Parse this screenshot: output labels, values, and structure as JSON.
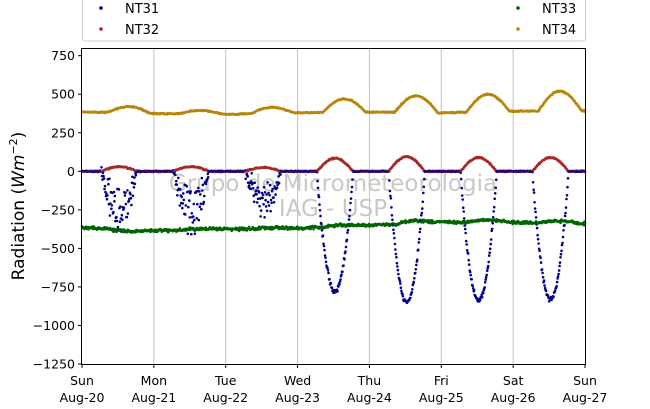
{
  "chart_data": {
    "type": "scatter",
    "title": "",
    "xlabel": "",
    "ylabel_text": "Radiation (",
    "ylabel_unit": "Wm",
    "ylabel_exp": "−2",
    "ylabel_close": ")",
    "watermark": [
      "Grupo de Micrometeorologia",
      "IAG - USP"
    ],
    "xlim": [
      0,
      7
    ],
    "ylim": [
      -1250,
      800
    ],
    "grid": "vertical",
    "legend_placement": "top",
    "x_ticks": [
      {
        "x": 0,
        "day": "Sun",
        "date": "Aug-20"
      },
      {
        "x": 1,
        "day": "Mon",
        "date": "Aug-21"
      },
      {
        "x": 2,
        "day": "Tue",
        "date": "Aug-22"
      },
      {
        "x": 3,
        "day": "Wed",
        "date": "Aug-23"
      },
      {
        "x": 4,
        "day": "Thu",
        "date": "Aug-24"
      },
      {
        "x": 5,
        "day": "Fri",
        "date": "Aug-25"
      },
      {
        "x": 6,
        "day": "Sat",
        "date": "Aug-26"
      },
      {
        "x": 7,
        "day": "Sun",
        "date": "Aug-27"
      }
    ],
    "y_ticks": [
      {
        "v": 750,
        "label": "750"
      },
      {
        "v": 500,
        "label": "500"
      },
      {
        "v": 250,
        "label": "250"
      },
      {
        "v": 0,
        "label": "0"
      },
      {
        "v": -250,
        "label": "−250"
      },
      {
        "v": -500,
        "label": "−500"
      },
      {
        "v": -750,
        "label": "−750"
      },
      {
        "v": -1000,
        "label": "−1000"
      },
      {
        "v": -1250,
        "label": "−1250"
      }
    ],
    "series": [
      {
        "name": "NT31",
        "color": "#00008b",
        "daily_min": [
          -400,
          -420,
          -330,
          -780,
          -850,
          -840,
          -830
        ],
        "noisy_days": [
          0,
          1,
          2
        ]
      },
      {
        "name": "NT32",
        "color": "#a52a2a",
        "daily_peak": [
          30,
          30,
          25,
          85,
          95,
          90,
          90
        ]
      },
      {
        "name": "NT33",
        "color": "#006400",
        "baseline": [
          -365,
          -385,
          -375,
          -370,
          -350,
          -330,
          -330,
          -340
        ],
        "daily_bump": [
          -10,
          5,
          5,
          10,
          15,
          15,
          15
        ]
      },
      {
        "name": "NT34",
        "color": "#b8860b",
        "baseline": [
          385,
          375,
          370,
          380,
          385,
          380,
          390,
          395
        ],
        "daily_peak": [
          420,
          395,
          415,
          470,
          490,
          500,
          520
        ]
      }
    ]
  }
}
